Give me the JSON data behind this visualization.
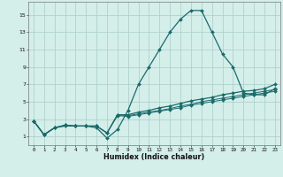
{
  "xlabel": "Humidex (Indice chaleur)",
  "background_color": "#d4eeea",
  "grid_color": "#aaccc8",
  "line_color": "#1a6b6b",
  "x": [
    0,
    1,
    2,
    3,
    4,
    5,
    6,
    7,
    8,
    9,
    10,
    11,
    12,
    13,
    14,
    15,
    16,
    17,
    18,
    19,
    20,
    21,
    22,
    23
  ],
  "series1": [
    2.8,
    1.2,
    2.0,
    2.2,
    2.2,
    2.2,
    2.0,
    0.8,
    1.8,
    4.0,
    7.0,
    9.0,
    11.0,
    13.0,
    14.5,
    15.5,
    15.5,
    13.0,
    10.5,
    9.0,
    6.0,
    5.8,
    5.8,
    6.5
  ],
  "series2": [
    2.8,
    1.2,
    2.0,
    2.3,
    2.2,
    2.2,
    2.2,
    1.4,
    3.5,
    3.5,
    3.8,
    4.0,
    4.3,
    4.5,
    4.8,
    5.1,
    5.3,
    5.5,
    5.8,
    6.0,
    6.2,
    6.3,
    6.5,
    7.0
  ],
  "series3": [
    2.8,
    1.2,
    2.0,
    2.3,
    2.2,
    2.2,
    2.2,
    1.4,
    3.5,
    3.4,
    3.6,
    3.8,
    4.0,
    4.2,
    4.5,
    4.7,
    5.0,
    5.2,
    5.4,
    5.6,
    5.8,
    6.0,
    6.2,
    6.4
  ],
  "series4": [
    2.8,
    1.2,
    2.0,
    2.3,
    2.2,
    2.2,
    2.2,
    1.4,
    3.4,
    3.3,
    3.5,
    3.7,
    3.9,
    4.1,
    4.3,
    4.6,
    4.8,
    5.0,
    5.2,
    5.4,
    5.6,
    5.8,
    6.0,
    6.2
  ],
  "ylim": [
    0,
    16.5
  ],
  "xlim": [
    -0.5,
    23.5
  ],
  "yticks": [
    1,
    3,
    5,
    7,
    9,
    11,
    13,
    15
  ],
  "xticks": [
    0,
    1,
    2,
    3,
    4,
    5,
    6,
    7,
    8,
    9,
    10,
    11,
    12,
    13,
    14,
    15,
    16,
    17,
    18,
    19,
    20,
    21,
    22,
    23
  ]
}
